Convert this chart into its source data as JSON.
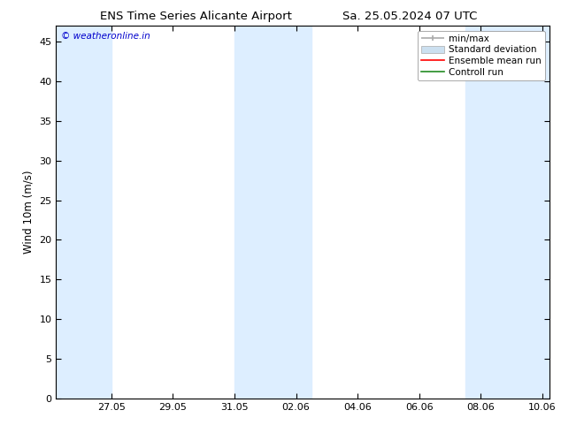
{
  "title_left": "ENS Time Series Alicante Airport",
  "title_right": "Sa. 25.05.2024 07 UTC",
  "ylabel": "Wind 10m (m/s)",
  "watermark": "© weatheronline.in",
  "watermark_color": "#0000cc",
  "ylim": [
    0,
    47
  ],
  "yticks": [
    0,
    5,
    10,
    15,
    20,
    25,
    30,
    35,
    40,
    45
  ],
  "xtick_labels": [
    "27.05",
    "29.05",
    "31.05",
    "02.06",
    "04.06",
    "06.06",
    "08.06",
    "10.06"
  ],
  "shade_color": "#ddeeff",
  "bg_color": "#ffffff",
  "legend_labels": [
    "min/max",
    "Standard deviation",
    "Ensemble mean run",
    "Controll run"
  ],
  "title_fontsize": 9.5,
  "tick_fontsize": 8,
  "ylabel_fontsize": 8.5,
  "legend_fontsize": 7.5,
  "watermark_fontsize": 7.5
}
